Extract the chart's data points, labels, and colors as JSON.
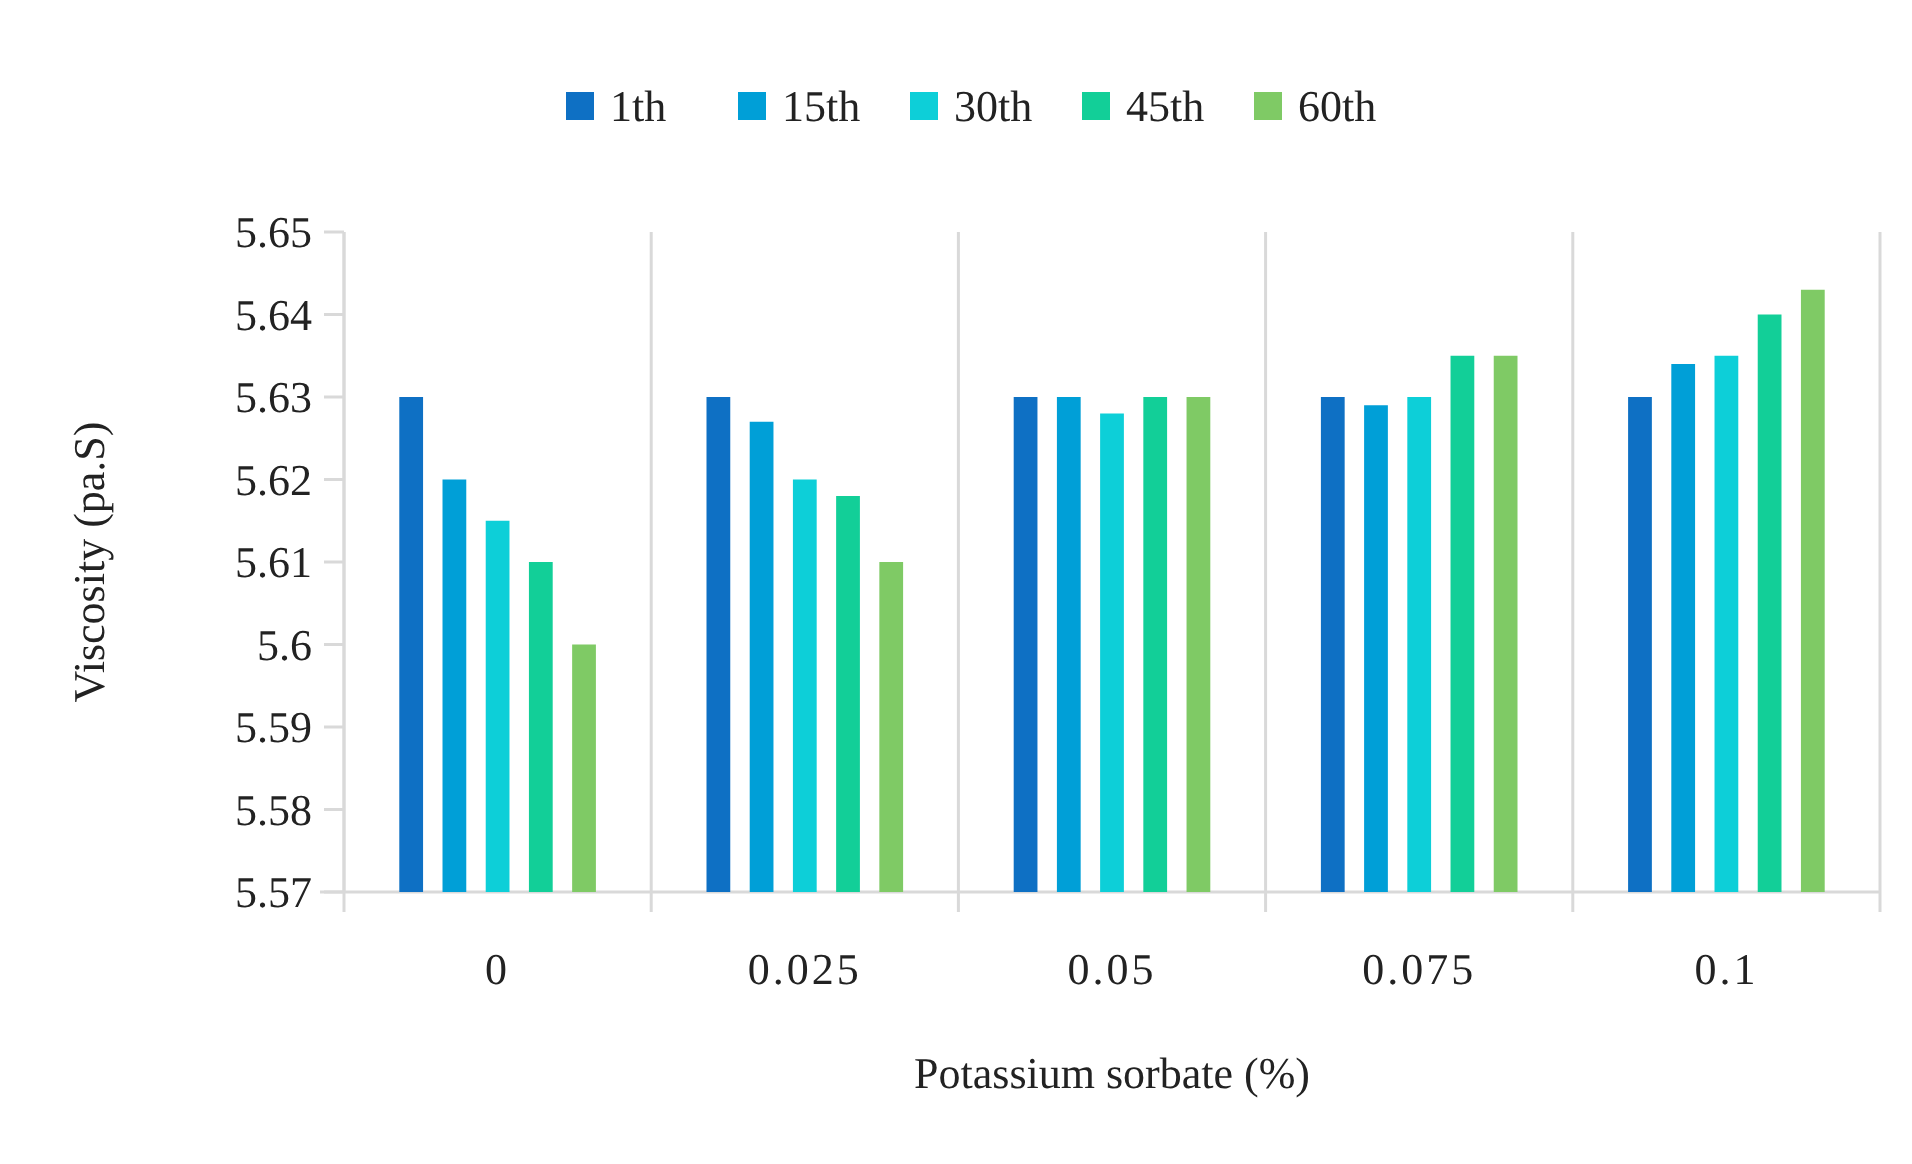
{
  "chart_data": {
    "type": "bar",
    "xlabel": "Potassium sorbate (%)",
    "ylabel": "Viscosity (pa.S)",
    "categories": [
      "0",
      "0.025",
      "0.05",
      "0.075",
      "0.1"
    ],
    "series": [
      {
        "name": "1th",
        "color": "#0e70c4",
        "values": [
          5.63,
          5.63,
          5.63,
          5.63,
          5.63
        ]
      },
      {
        "name": "15th",
        "color": "#009fd7",
        "values": [
          5.62,
          5.627,
          5.63,
          5.629,
          5.634
        ]
      },
      {
        "name": "30th",
        "color": "#0dcfd8",
        "values": [
          5.615,
          5.62,
          5.628,
          5.63,
          5.635
        ]
      },
      {
        "name": "45th",
        "color": "#12cf98",
        "values": [
          5.61,
          5.618,
          5.63,
          5.635,
          5.64
        ]
      },
      {
        "name": "60th",
        "color": "#7fca65",
        "values": [
          5.6,
          5.61,
          5.63,
          5.635,
          5.643
        ]
      }
    ],
    "ylim": [
      5.57,
      5.65
    ],
    "yticks": [
      5.57,
      5.58,
      5.59,
      5.6,
      5.61,
      5.62,
      5.63,
      5.64,
      5.65
    ],
    "grid": "x",
    "legend": "top"
  }
}
